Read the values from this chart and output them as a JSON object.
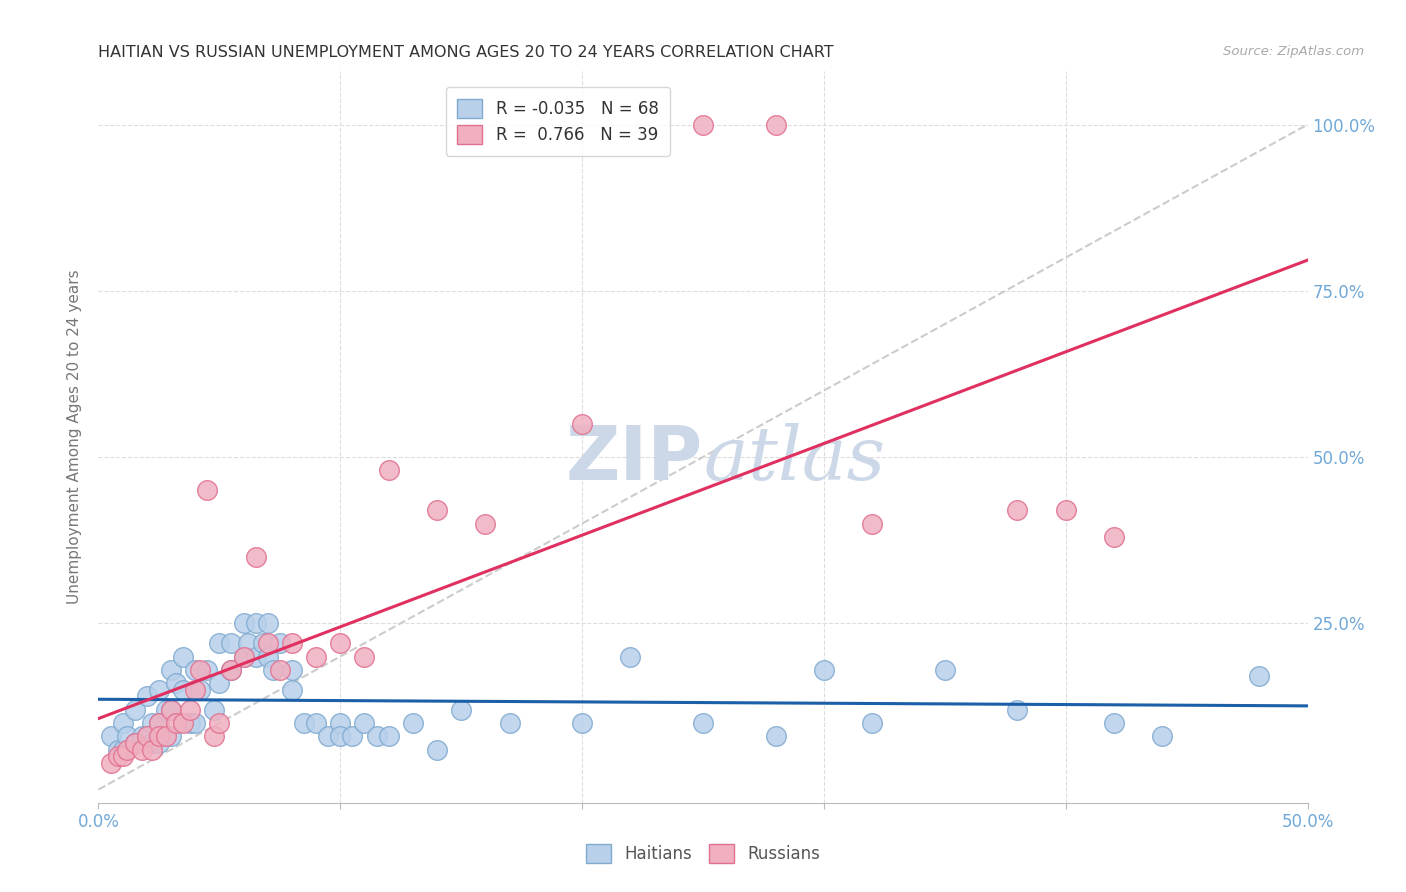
{
  "title": "HAITIAN VS RUSSIAN UNEMPLOYMENT AMONG AGES 20 TO 24 YEARS CORRELATION CHART",
  "source": "Source: ZipAtlas.com",
  "ylabel": "Unemployment Among Ages 20 to 24 years",
  "xlim": [
    0.0,
    0.5
  ],
  "ylim": [
    -0.02,
    1.08
  ],
  "haitian_color": "#b8d0ea",
  "russian_color": "#f0b0c0",
  "haitian_edge": "#80aad0",
  "russian_edge": "#e07090",
  "regression_haitian_color": "#1a5fa8",
  "regression_russian_color": "#e03060",
  "diag_color": "#cccccc",
  "watermark_color": "#ccd8e8",
  "background_color": "#ffffff",
  "grid_color": "#dddddd",
  "title_color": "#333333",
  "axis_label_color": "#777777",
  "tick_color": "#70a8d8",
  "R_haitian": -0.035,
  "N_haitian": 68,
  "R_russian": 0.766,
  "N_russian": 39,
  "haitian_x": [
    0.005,
    0.008,
    0.01,
    0.01,
    0.012,
    0.015,
    0.015,
    0.018,
    0.02,
    0.02,
    0.022,
    0.022,
    0.025,
    0.025,
    0.025,
    0.028,
    0.03,
    0.03,
    0.03,
    0.032,
    0.035,
    0.035,
    0.038,
    0.04,
    0.04,
    0.042,
    0.045,
    0.048,
    0.05,
    0.05,
    0.055,
    0.055,
    0.06,
    0.06,
    0.062,
    0.065,
    0.065,
    0.068,
    0.07,
    0.07,
    0.072,
    0.075,
    0.08,
    0.08,
    0.085,
    0.09,
    0.095,
    0.1,
    0.1,
    0.105,
    0.11,
    0.115,
    0.12,
    0.13,
    0.14,
    0.15,
    0.17,
    0.2,
    0.22,
    0.25,
    0.28,
    0.3,
    0.32,
    0.35,
    0.38,
    0.42,
    0.44,
    0.48
  ],
  "haitian_y": [
    0.08,
    0.06,
    0.1,
    0.06,
    0.08,
    0.12,
    0.07,
    0.08,
    0.14,
    0.08,
    0.1,
    0.07,
    0.15,
    0.1,
    0.07,
    0.12,
    0.18,
    0.12,
    0.08,
    0.16,
    0.2,
    0.15,
    0.1,
    0.18,
    0.1,
    0.15,
    0.18,
    0.12,
    0.22,
    0.16,
    0.22,
    0.18,
    0.25,
    0.2,
    0.22,
    0.25,
    0.2,
    0.22,
    0.25,
    0.2,
    0.18,
    0.22,
    0.18,
    0.15,
    0.1,
    0.1,
    0.08,
    0.1,
    0.08,
    0.08,
    0.1,
    0.08,
    0.08,
    0.1,
    0.06,
    0.12,
    0.1,
    0.1,
    0.2,
    0.1,
    0.08,
    0.18,
    0.1,
    0.18,
    0.12,
    0.1,
    0.08,
    0.17
  ],
  "russian_x": [
    0.005,
    0.008,
    0.01,
    0.012,
    0.015,
    0.018,
    0.02,
    0.022,
    0.025,
    0.025,
    0.028,
    0.03,
    0.032,
    0.035,
    0.038,
    0.04,
    0.042,
    0.045,
    0.048,
    0.05,
    0.055,
    0.06,
    0.065,
    0.07,
    0.075,
    0.08,
    0.09,
    0.1,
    0.11,
    0.12,
    0.14,
    0.16,
    0.2,
    0.25,
    0.28,
    0.32,
    0.38,
    0.4,
    0.42
  ],
  "russian_y": [
    0.04,
    0.05,
    0.05,
    0.06,
    0.07,
    0.06,
    0.08,
    0.06,
    0.1,
    0.08,
    0.08,
    0.12,
    0.1,
    0.1,
    0.12,
    0.15,
    0.18,
    0.45,
    0.08,
    0.1,
    0.18,
    0.2,
    0.35,
    0.22,
    0.18,
    0.22,
    0.2,
    0.22,
    0.2,
    0.48,
    0.42,
    0.4,
    0.55,
    1.0,
    1.0,
    0.4,
    0.42,
    0.42,
    0.38
  ]
}
